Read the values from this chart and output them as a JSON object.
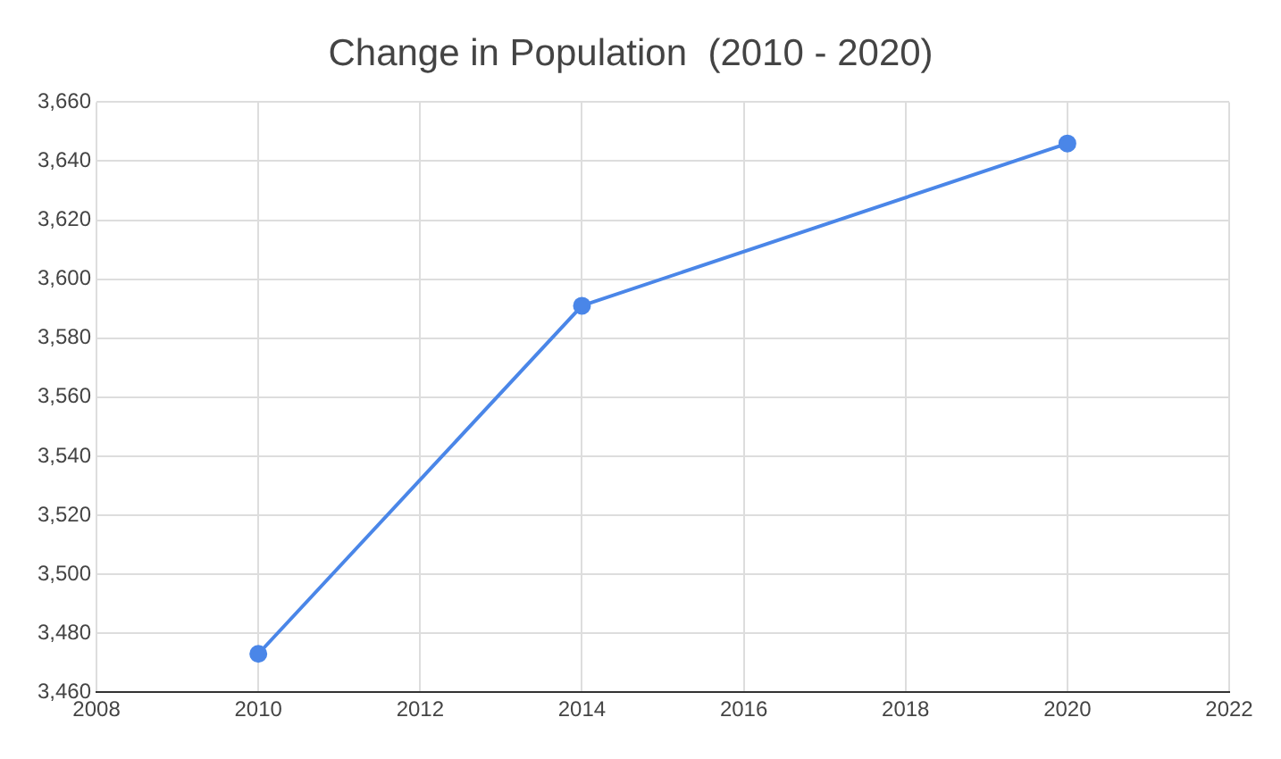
{
  "chart_data": {
    "type": "line",
    "title": "Change in Population  (2010 - 2020)",
    "x": [
      2010,
      2014,
      2020
    ],
    "series": [
      {
        "color": "#4a86e8",
        "values": [
          3473,
          3591,
          3646
        ]
      }
    ],
    "xlim": [
      2008,
      2022
    ],
    "xticks": [
      2008,
      2010,
      2012,
      2014,
      2016,
      2018,
      2020,
      2022
    ],
    "ylim": [
      3460,
      3660
    ],
    "yticks": [
      {
        "value": 3460,
        "label": "3,460"
      },
      {
        "value": 3480,
        "label": "3,480"
      },
      {
        "value": 3500,
        "label": "3,500"
      },
      {
        "value": 3520,
        "label": "3,520"
      },
      {
        "value": 3540,
        "label": "3,540"
      },
      {
        "value": 3560,
        "label": "3,560"
      },
      {
        "value": 3580,
        "label": "3,580"
      },
      {
        "value": 3600,
        "label": "3,600"
      },
      {
        "value": 3620,
        "label": "3,620"
      },
      {
        "value": 3640,
        "label": "3,640"
      },
      {
        "value": 3660,
        "label": "3,660"
      }
    ],
    "grid": true,
    "marker": "circle",
    "line_style": "solid"
  }
}
